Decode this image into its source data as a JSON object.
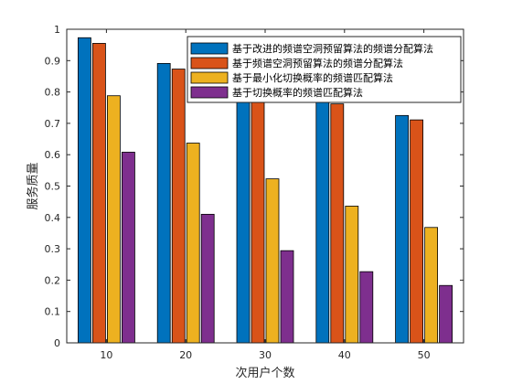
{
  "chart_data": {
    "type": "bar",
    "xlabel": "次用户个数",
    "ylabel": "服务质量",
    "ylim": [
      0,
      1
    ],
    "yticks": [
      "0",
      "0.1",
      "0.2",
      "0.3",
      "0.4",
      "0.5",
      "0.6",
      "0.7",
      "0.8",
      "0.9",
      "1"
    ],
    "categories": [
      "10",
      "20",
      "30",
      "40",
      "50"
    ],
    "legend_position": "top-right",
    "grid": false,
    "series": [
      {
        "name": "基于改进的频谱空洞预留算法的频谱分配算法",
        "color": "#0072BD",
        "values": [
          0.973,
          0.891,
          0.81,
          0.79,
          0.725
        ]
      },
      {
        "name": "基于频谱空洞预留算法的频谱分配算法",
        "color": "#D95319",
        "values": [
          0.955,
          0.873,
          0.795,
          0.762,
          0.711
        ]
      },
      {
        "name": "基于最小化切换概率的频谱匹配算法",
        "color": "#EDB120",
        "values": [
          0.788,
          0.637,
          0.523,
          0.436,
          0.368
        ]
      },
      {
        "name": "基于切换概率的频谱匹配算法",
        "color": "#7E2F8E",
        "values": [
          0.608,
          0.41,
          0.294,
          0.227,
          0.183
        ]
      }
    ]
  }
}
